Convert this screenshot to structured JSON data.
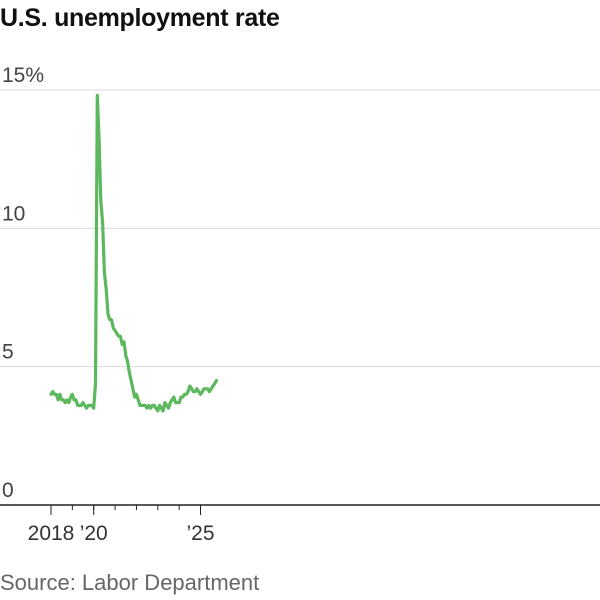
{
  "title": "U.S. unemployment rate",
  "source": "Source: Labor Department",
  "chart_data": {
    "type": "line",
    "title": "U.S. unemployment rate",
    "xlabel": "",
    "ylabel": "",
    "ylim": [
      0,
      15
    ],
    "grid": true,
    "y_ticks": [
      {
        "value": 15,
        "label": "15%"
      },
      {
        "value": 10,
        "label": "10"
      },
      {
        "value": 5,
        "label": "5"
      },
      {
        "value": 0,
        "label": "0"
      }
    ],
    "x_ticks": [
      {
        "value": "2018-01",
        "label": "2018"
      },
      {
        "value": "2020-01",
        "label": "’20"
      },
      {
        "value": "2025-01",
        "label": "’25"
      }
    ],
    "series": [
      {
        "color": "#5cb85c",
        "x_start": "2018-01",
        "frequency": "monthly",
        "values": [
          4.0,
          4.1,
          4.0,
          4.0,
          3.8,
          4.0,
          3.8,
          3.8,
          3.7,
          3.8,
          3.7,
          3.9,
          4.0,
          3.8,
          3.8,
          3.6,
          3.6,
          3.6,
          3.7,
          3.6,
          3.5,
          3.6,
          3.6,
          3.6,
          3.5,
          4.4,
          14.8,
          13.2,
          11.0,
          10.2,
          8.4,
          7.8,
          6.9,
          6.7,
          6.7,
          6.4,
          6.3,
          6.2,
          6.1,
          6.1,
          5.8,
          5.9,
          5.4,
          5.2,
          4.8,
          4.5,
          4.2,
          3.9,
          4.0,
          3.8,
          3.6,
          3.6,
          3.6,
          3.6,
          3.5,
          3.6,
          3.5,
          3.6,
          3.6,
          3.5,
          3.4,
          3.6,
          3.5,
          3.4,
          3.7,
          3.6,
          3.5,
          3.7,
          3.8,
          3.9,
          3.7,
          3.7,
          3.7,
          3.9,
          3.9,
          4.0,
          4.0,
          4.1,
          4.3,
          4.2,
          4.1,
          4.1,
          4.2,
          4.1,
          4.0,
          4.1,
          4.2,
          4.2,
          4.2,
          4.1,
          4.2,
          4.3,
          4.4,
          4.5
        ]
      }
    ]
  }
}
